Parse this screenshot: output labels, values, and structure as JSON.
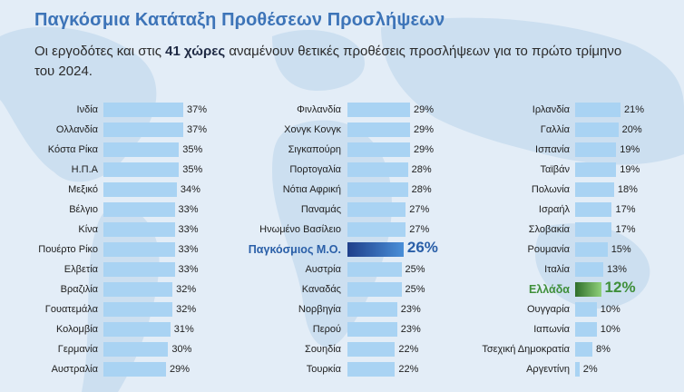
{
  "title": "Παγκόσμια Κατάταξη Προθέσεων Προσλήψεων",
  "subtitle": {
    "before": "Οι εργοδότες και στις ",
    "bold": "41 χώρες",
    "after": " αναμένουν θετικές προθέσεις προσλήψεων για το πρώτο τρίμηνο του 2024."
  },
  "colors": {
    "bar": "#a9d3f3",
    "global_avg": "#2a5fa8",
    "greece": "#3f8f3a",
    "title": "#3d74b8"
  },
  "chart_data": {
    "type": "bar",
    "title": "Παγκόσμια Κατάταξη Προθέσεων Προσλήψεων",
    "unit": "%",
    "orientation": "horizontal",
    "xlim": [
      0,
      40
    ],
    "columns": [
      [
        {
          "label": "Ινδία",
          "value": 37
        },
        {
          "label": "Ολλανδία",
          "value": 37
        },
        {
          "label": "Κόστα Ρίκα",
          "value": 35
        },
        {
          "label": "Η.Π.Α",
          "value": 35
        },
        {
          "label": "Μεξικό",
          "value": 34
        },
        {
          "label": "Βέλγιο",
          "value": 33
        },
        {
          "label": "Κίνα",
          "value": 33
        },
        {
          "label": "Πουέρτο Ρίκο",
          "value": 33
        },
        {
          "label": "Ελβετία",
          "value": 33
        },
        {
          "label": "Βραζιλία",
          "value": 32
        },
        {
          "label": "Γουατεμάλα",
          "value": 32
        },
        {
          "label": "Κολομβία",
          "value": 31
        },
        {
          "label": "Γερμανία",
          "value": 30
        },
        {
          "label": "Αυστραλία",
          "value": 29
        }
      ],
      [
        {
          "label": "Φινλανδία",
          "value": 29
        },
        {
          "label": "Χονγκ Κονγκ",
          "value": 29
        },
        {
          "label": "Σιγκαπούρη",
          "value": 29
        },
        {
          "label": "Πορτογαλία",
          "value": 28
        },
        {
          "label": "Νότια Αφρική",
          "value": 28
        },
        {
          "label": "Παναμάς",
          "value": 27
        },
        {
          "label": "Ηνωμένο Βασίλειο",
          "value": 27
        },
        {
          "label": "Παγκόσμιος Μ.Ο.",
          "value": 26,
          "highlight": "global"
        },
        {
          "label": "Αυστρία",
          "value": 25
        },
        {
          "label": "Καναδάς",
          "value": 25
        },
        {
          "label": "Νορβηγία",
          "value": 23
        },
        {
          "label": "Περού",
          "value": 23
        },
        {
          "label": "Σουηδία",
          "value": 22
        },
        {
          "label": "Τουρκία",
          "value": 22
        }
      ],
      [
        {
          "label": "Ιρλανδία",
          "value": 21
        },
        {
          "label": "Γαλλία",
          "value": 20
        },
        {
          "label": "Ισπανία",
          "value": 19
        },
        {
          "label": "Ταϊβάν",
          "value": 19
        },
        {
          "label": "Πολωνία",
          "value": 18
        },
        {
          "label": "Ισραήλ",
          "value": 17
        },
        {
          "label": "Σλοβακία",
          "value": 17
        },
        {
          "label": "Ρουμανία",
          "value": 15
        },
        {
          "label": "Ιταλία",
          "value": 13
        },
        {
          "label": "Ελλάδα",
          "value": 12,
          "highlight": "greece"
        },
        {
          "label": "Ουγγαρία",
          "value": 10
        },
        {
          "label": "Ιαπωνία",
          "value": 10
        },
        {
          "label": "Τσεχική Δημοκρατία",
          "value": 8
        },
        {
          "label": "Αργεντίνη",
          "value": 2
        }
      ]
    ]
  }
}
